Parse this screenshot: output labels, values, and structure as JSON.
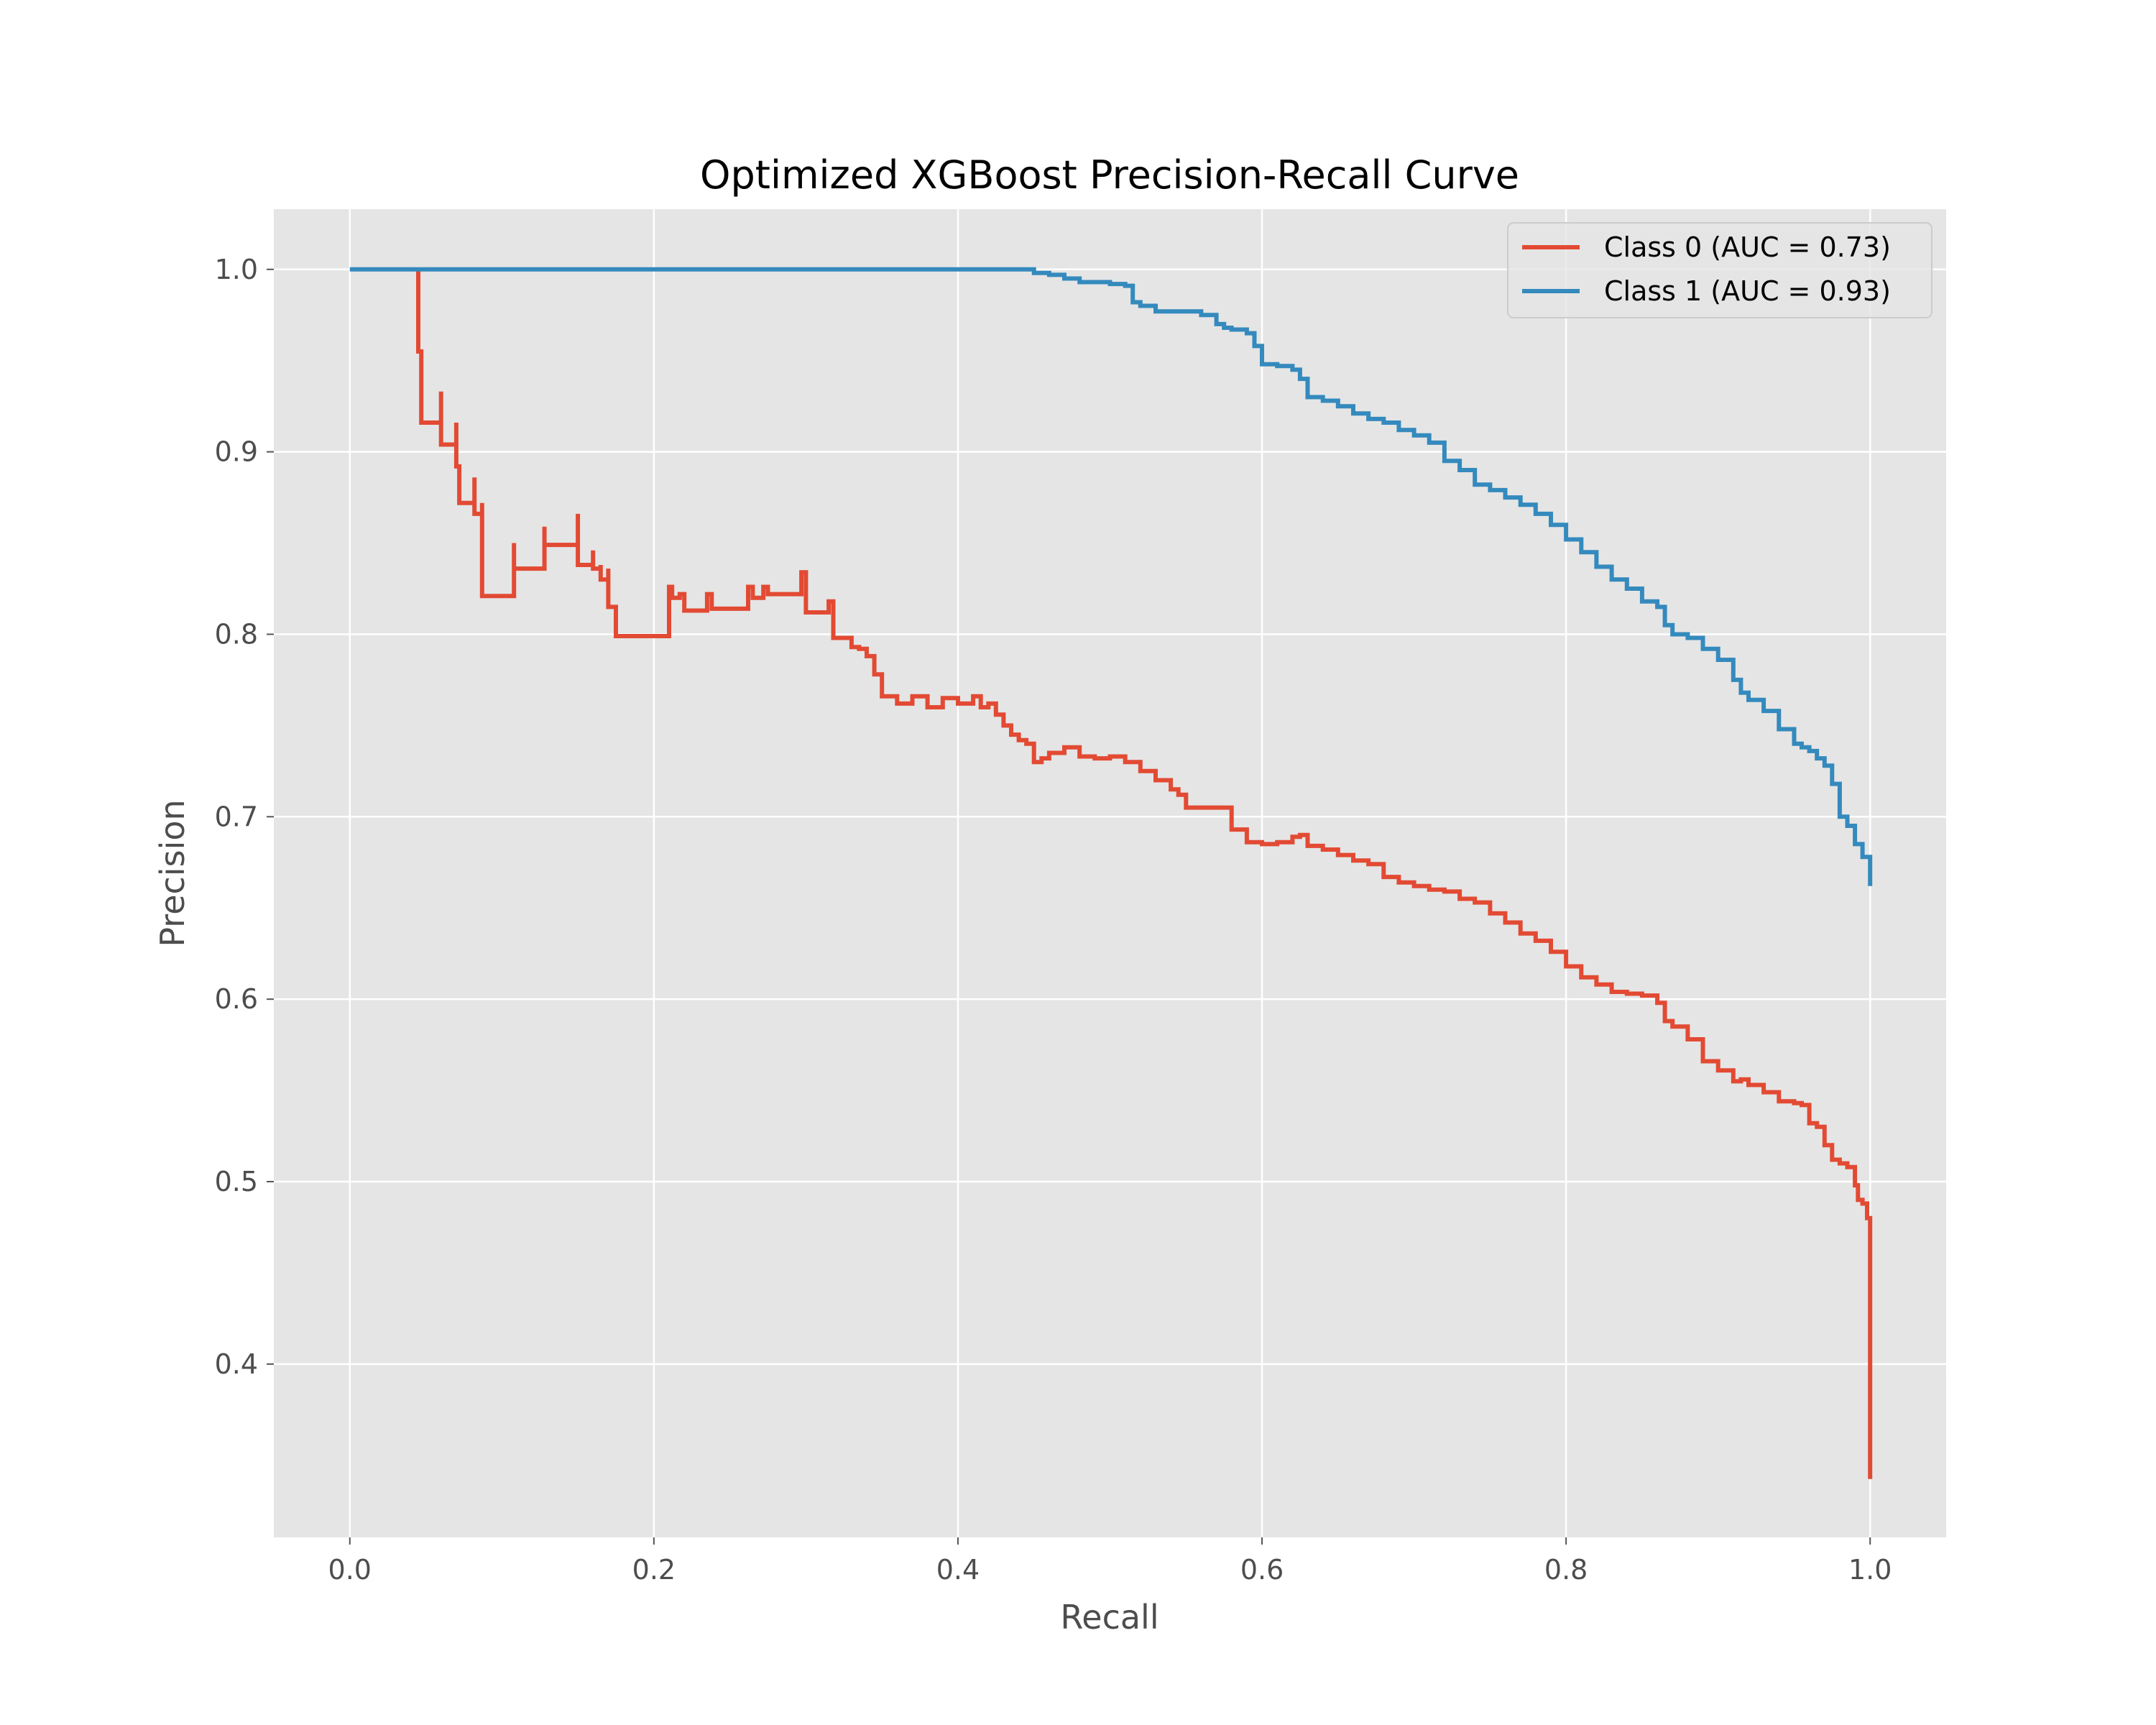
{
  "chart_data": {
    "type": "line",
    "title": "Optimized XGBoost Precision-Recall Curve",
    "xlabel": "Recall",
    "ylabel": "Precision",
    "xlim": [
      -0.05,
      1.05
    ],
    "ylim": [
      0.305,
      1.033
    ],
    "xticks": [
      0.0,
      0.2,
      0.4,
      0.6,
      0.8,
      1.0
    ],
    "yticks": [
      0.4,
      0.5,
      0.6,
      0.7,
      0.8,
      0.9,
      1.0
    ],
    "x_tick_labels": [
      "0.0",
      "0.2",
      "0.4",
      "0.6",
      "0.8",
      "1.0"
    ],
    "y_tick_labels": [
      "0.4",
      "0.5",
      "0.6",
      "0.7",
      "0.8",
      "0.9",
      "1.0"
    ],
    "grid": true,
    "background": "#e5e5e5",
    "legend_position": "top-right",
    "series": [
      {
        "name": "Class 0 (AUC = 0.73)",
        "color": "#e24a33",
        "x": [
          0.045,
          0.045,
          0.047,
          0.047,
          0.06,
          0.06,
          0.07,
          0.07,
          0.072,
          0.072,
          0.082,
          0.082,
          0.087,
          0.087,
          0.108,
          0.108,
          0.128,
          0.128,
          0.15,
          0.15,
          0.16,
          0.16,
          0.165,
          0.165,
          0.17,
          0.17,
          0.175,
          0.175,
          0.21,
          0.212,
          0.217,
          0.22,
          0.235,
          0.238,
          0.262,
          0.265,
          0.272,
          0.275,
          0.297,
          0.3,
          0.315,
          0.318,
          0.325,
          0.33,
          0.335,
          0.34,
          0.345,
          0.35,
          0.36,
          0.37,
          0.38,
          0.39,
          0.4,
          0.41,
          0.415,
          0.42,
          0.425,
          0.43,
          0.435,
          0.44,
          0.445,
          0.45,
          0.455,
          0.46,
          0.47,
          0.48,
          0.49,
          0.5,
          0.51,
          0.52,
          0.53,
          0.54,
          0.545,
          0.55,
          0.56,
          0.57,
          0.58,
          0.59,
          0.6,
          0.61,
          0.62,
          0.625,
          0.63,
          0.64,
          0.65,
          0.66,
          0.67,
          0.68,
          0.69,
          0.7,
          0.71,
          0.72,
          0.73,
          0.74,
          0.75,
          0.76,
          0.77,
          0.78,
          0.79,
          0.8,
          0.81,
          0.82,
          0.83,
          0.84,
          0.85,
          0.86,
          0.865,
          0.87,
          0.88,
          0.89,
          0.9,
          0.91,
          0.915,
          0.92,
          0.93,
          0.94,
          0.95,
          0.955,
          0.96,
          0.965,
          0.97,
          0.975,
          0.98,
          0.985,
          0.99,
          0.992,
          0.995,
          0.998,
          1.0,
          1.0
        ],
        "y": [
          1.0,
          0.955,
          0.955,
          0.916,
          0.933,
          0.904,
          0.916,
          0.892,
          0.892,
          0.872,
          0.886,
          0.866,
          0.872,
          0.821,
          0.85,
          0.836,
          0.859,
          0.849,
          0.866,
          0.838,
          0.846,
          0.836,
          0.838,
          0.83,
          0.836,
          0.815,
          0.815,
          0.799,
          0.826,
          0.82,
          0.822,
          0.813,
          0.822,
          0.814,
          0.826,
          0.82,
          0.826,
          0.822,
          0.834,
          0.812,
          0.818,
          0.798,
          0.798,
          0.793,
          0.792,
          0.788,
          0.778,
          0.766,
          0.762,
          0.766,
          0.76,
          0.765,
          0.762,
          0.766,
          0.76,
          0.762,
          0.756,
          0.75,
          0.745,
          0.742,
          0.74,
          0.73,
          0.732,
          0.735,
          0.738,
          0.733,
          0.732,
          0.733,
          0.73,
          0.725,
          0.72,
          0.715,
          0.712,
          0.705,
          0.705,
          0.705,
          0.693,
          0.686,
          0.685,
          0.686,
          0.689,
          0.69,
          0.684,
          0.682,
          0.679,
          0.676,
          0.674,
          0.667,
          0.664,
          0.662,
          0.66,
          0.659,
          0.655,
          0.653,
          0.647,
          0.642,
          0.636,
          0.632,
          0.626,
          0.618,
          0.612,
          0.608,
          0.604,
          0.603,
          0.602,
          0.598,
          0.588,
          0.585,
          0.578,
          0.566,
          0.561,
          0.555,
          0.556,
          0.553,
          0.549,
          0.544,
          0.543,
          0.542,
          0.532,
          0.53,
          0.52,
          0.512,
          0.51,
          0.508,
          0.498,
          0.49,
          0.488,
          0.48,
          0.478,
          0.337
        ]
      },
      {
        "name": "Class 1 (AUC = 0.93)",
        "color": "#348abd",
        "x": [
          0.0,
          0.2,
          0.4,
          0.445,
          0.45,
          0.46,
          0.47,
          0.48,
          0.49,
          0.5,
          0.51,
          0.515,
          0.52,
          0.53,
          0.54,
          0.55,
          0.56,
          0.57,
          0.575,
          0.58,
          0.59,
          0.595,
          0.6,
          0.61,
          0.62,
          0.625,
          0.63,
          0.64,
          0.65,
          0.66,
          0.67,
          0.68,
          0.69,
          0.7,
          0.71,
          0.72,
          0.73,
          0.74,
          0.75,
          0.76,
          0.77,
          0.78,
          0.79,
          0.8,
          0.81,
          0.82,
          0.83,
          0.84,
          0.85,
          0.86,
          0.865,
          0.87,
          0.88,
          0.89,
          0.9,
          0.91,
          0.915,
          0.92,
          0.93,
          0.94,
          0.95,
          0.955,
          0.96,
          0.965,
          0.97,
          0.975,
          0.98,
          0.985,
          0.99,
          0.995,
          1.0
        ],
        "y": [
          1.0,
          1.0,
          1.0,
          1.0,
          0.998,
          0.997,
          0.995,
          0.993,
          0.993,
          0.992,
          0.991,
          0.982,
          0.98,
          0.977,
          0.977,
          0.977,
          0.975,
          0.97,
          0.968,
          0.967,
          0.965,
          0.958,
          0.948,
          0.947,
          0.945,
          0.94,
          0.93,
          0.928,
          0.925,
          0.921,
          0.918,
          0.916,
          0.912,
          0.909,
          0.905,
          0.895,
          0.89,
          0.882,
          0.879,
          0.875,
          0.871,
          0.866,
          0.86,
          0.852,
          0.845,
          0.837,
          0.83,
          0.825,
          0.818,
          0.815,
          0.805,
          0.8,
          0.798,
          0.792,
          0.786,
          0.775,
          0.768,
          0.764,
          0.758,
          0.748,
          0.74,
          0.738,
          0.736,
          0.732,
          0.728,
          0.718,
          0.7,
          0.695,
          0.685,
          0.678,
          0.662
        ]
      }
    ]
  }
}
